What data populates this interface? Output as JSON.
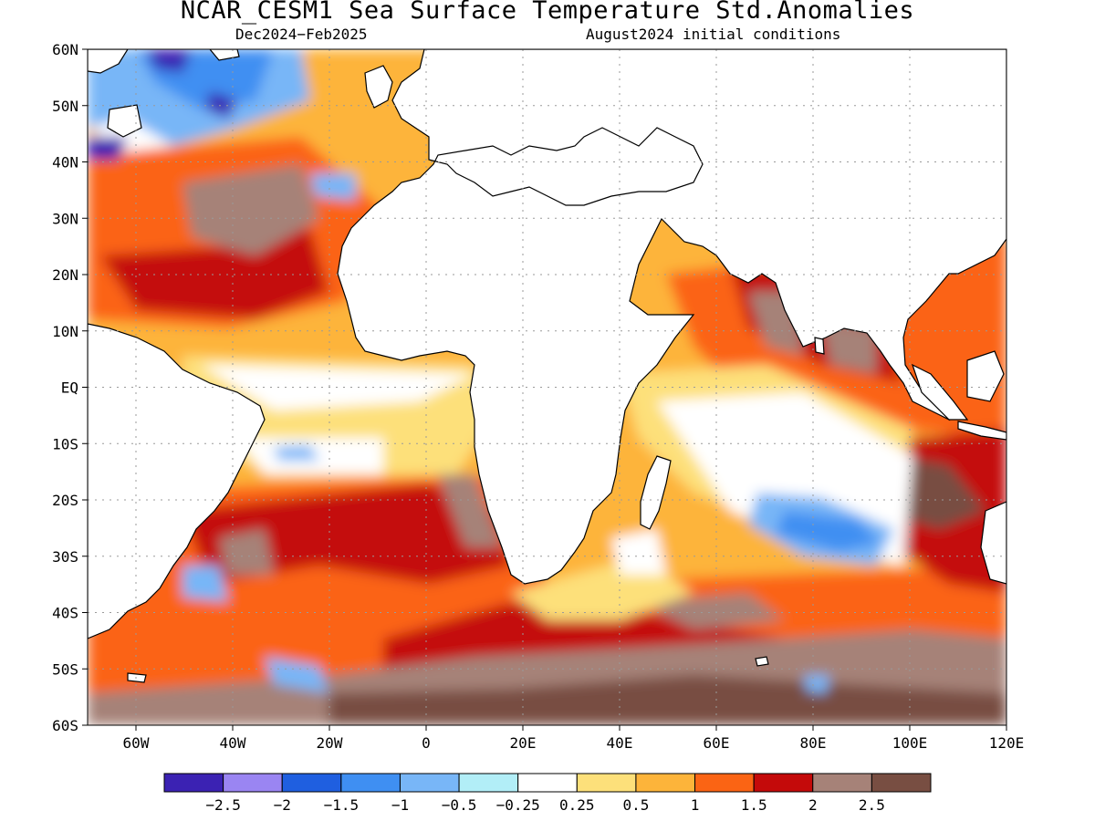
{
  "header": {
    "title": "NCAR_CESM1 Sea Surface Temperature Std.Anomalies",
    "period": "Dec2024−Feb2025",
    "initial_conditions": "August2024 initial conditions"
  },
  "map": {
    "lon_range": [
      -70,
      120
    ],
    "lat_range": [
      -60,
      60
    ],
    "lat_ticks": [
      {
        "value": 60,
        "label": "60N"
      },
      {
        "value": 50,
        "label": "50N"
      },
      {
        "value": 40,
        "label": "40N"
      },
      {
        "value": 30,
        "label": "30N"
      },
      {
        "value": 20,
        "label": "20N"
      },
      {
        "value": 10,
        "label": "10N"
      },
      {
        "value": 0,
        "label": "EQ"
      },
      {
        "value": -10,
        "label": "10S"
      },
      {
        "value": -20,
        "label": "20S"
      },
      {
        "value": -30,
        "label": "30S"
      },
      {
        "value": -40,
        "label": "40S"
      },
      {
        "value": -50,
        "label": "50S"
      },
      {
        "value": -60,
        "label": "60S"
      }
    ],
    "lon_ticks": [
      {
        "value": -60,
        "label": "60W"
      },
      {
        "value": -40,
        "label": "40W"
      },
      {
        "value": -20,
        "label": "20W"
      },
      {
        "value": 0,
        "label": "0"
      },
      {
        "value": 20,
        "label": "20E"
      },
      {
        "value": 40,
        "label": "40E"
      },
      {
        "value": 60,
        "label": "60E"
      },
      {
        "value": 80,
        "label": "80E"
      },
      {
        "value": 100,
        "label": "100E"
      },
      {
        "value": 120,
        "label": "120E"
      }
    ],
    "gridlines": true,
    "colors": {
      "land": "#ffffff",
      "coastline": "#000000",
      "grid": "#9a9a9a"
    }
  },
  "colorbar": {
    "colors": [
      "#3b22b3",
      "#9a85f2",
      "#1f5fe0",
      "#3f8ff2",
      "#78b6f7",
      "#b2eef7",
      "#ffffff",
      "#fde07a",
      "#fdb43a",
      "#fb6414",
      "#c40a0a",
      "#a68278",
      "#784e42"
    ],
    "labels": [
      "−2.5",
      "−2",
      "−1.5",
      "−1",
      "−0.5",
      "−0.25",
      "0.25",
      "0.5",
      "1",
      "1.5",
      "2",
      "2.5"
    ]
  },
  "anomaly_regions": [
    {
      "region": "south-atlantic-40s",
      "category": 10
    },
    {
      "region": "southern-ocean-band",
      "category": 12
    },
    {
      "region": "southeast-indian-ocean",
      "category": 12
    },
    {
      "region": "bay-of-bengal",
      "category": 11
    },
    {
      "region": "subtropical-south-indian",
      "category": 3
    },
    {
      "region": "north-atlantic-subpolar",
      "category": 1
    },
    {
      "region": "north-atlantic-subtropics",
      "category": 12
    },
    {
      "region": "tropical-atlantic",
      "category": 7
    },
    {
      "region": "south-atlantic-50s",
      "category": 4
    }
  ]
}
